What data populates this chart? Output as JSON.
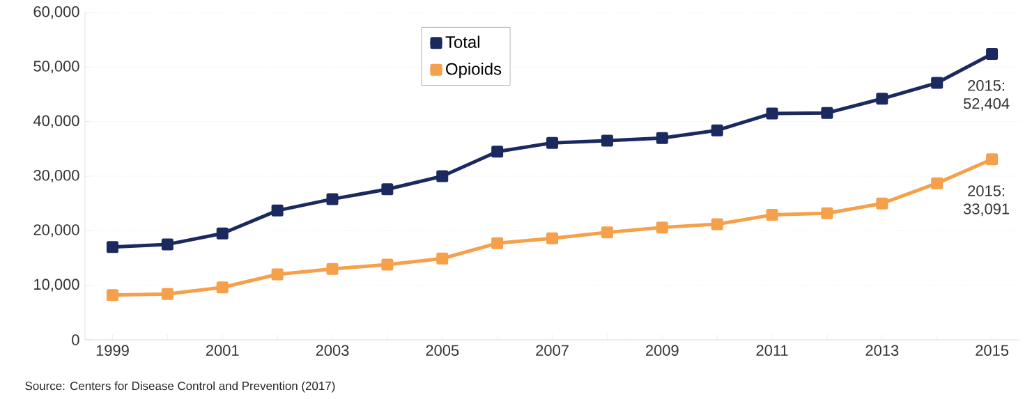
{
  "chart_data": {
    "type": "line",
    "x": [
      1999,
      2000,
      2001,
      2002,
      2003,
      2004,
      2005,
      2006,
      2007,
      2008,
      2009,
      2010,
      2011,
      2012,
      2013,
      2014,
      2015
    ],
    "series": [
      {
        "name": "Total",
        "color": "#1b2a5e",
        "values": [
          17000,
          17500,
          19500,
          23700,
          25800,
          27600,
          30000,
          34500,
          36100,
          36500,
          37000,
          38400,
          41500,
          41600,
          44200,
          47100,
          52404
        ]
      },
      {
        "name": "Opioids",
        "color": "#f5a04a",
        "values": [
          8200,
          8400,
          9600,
          12000,
          13000,
          13800,
          14900,
          17700,
          18600,
          19700,
          20600,
          21200,
          22900,
          23200,
          25000,
          28700,
          33091
        ]
      }
    ],
    "xlim": [
      1998.5,
      2015.5
    ],
    "xticks": [
      1999,
      {
        "value": 2000,
        "label": null
      },
      2001,
      {
        "value": 2002,
        "label": null
      },
      2003,
      {
        "value": 2004,
        "label": null
      },
      2005,
      {
        "value": 2006,
        "label": null
      },
      2007,
      {
        "value": 2008,
        "label": null
      },
      2009,
      {
        "value": 2010,
        "label": null
      },
      2011,
      {
        "value": 2012,
        "label": null
      },
      2013,
      {
        "value": 2014,
        "label": null
      },
      2015
    ],
    "ylim": [
      0,
      60000
    ],
    "yticks": [
      {
        "value": 0,
        "label": "0"
      },
      {
        "value": 10000,
        "label": "10,000"
      },
      {
        "value": 20000,
        "label": "20,000"
      },
      {
        "value": 30000,
        "label": "30,000"
      },
      {
        "value": 40000,
        "label": "40,000"
      },
      {
        "value": 50000,
        "label": "50,000"
      },
      {
        "value": 60000,
        "label": "60,000"
      }
    ],
    "grid": "y",
    "legend": "top",
    "marker": "square",
    "line_style": "solid",
    "annotations": [
      "Source: Centers for Disease Control and Prevention (2017)",
      {
        "text": "2015: 52,404",
        "x": 2015,
        "y": 52404
      },
      {
        "text": "2015: 33,091",
        "x": 2015,
        "y": 33091
      }
    ]
  }
}
